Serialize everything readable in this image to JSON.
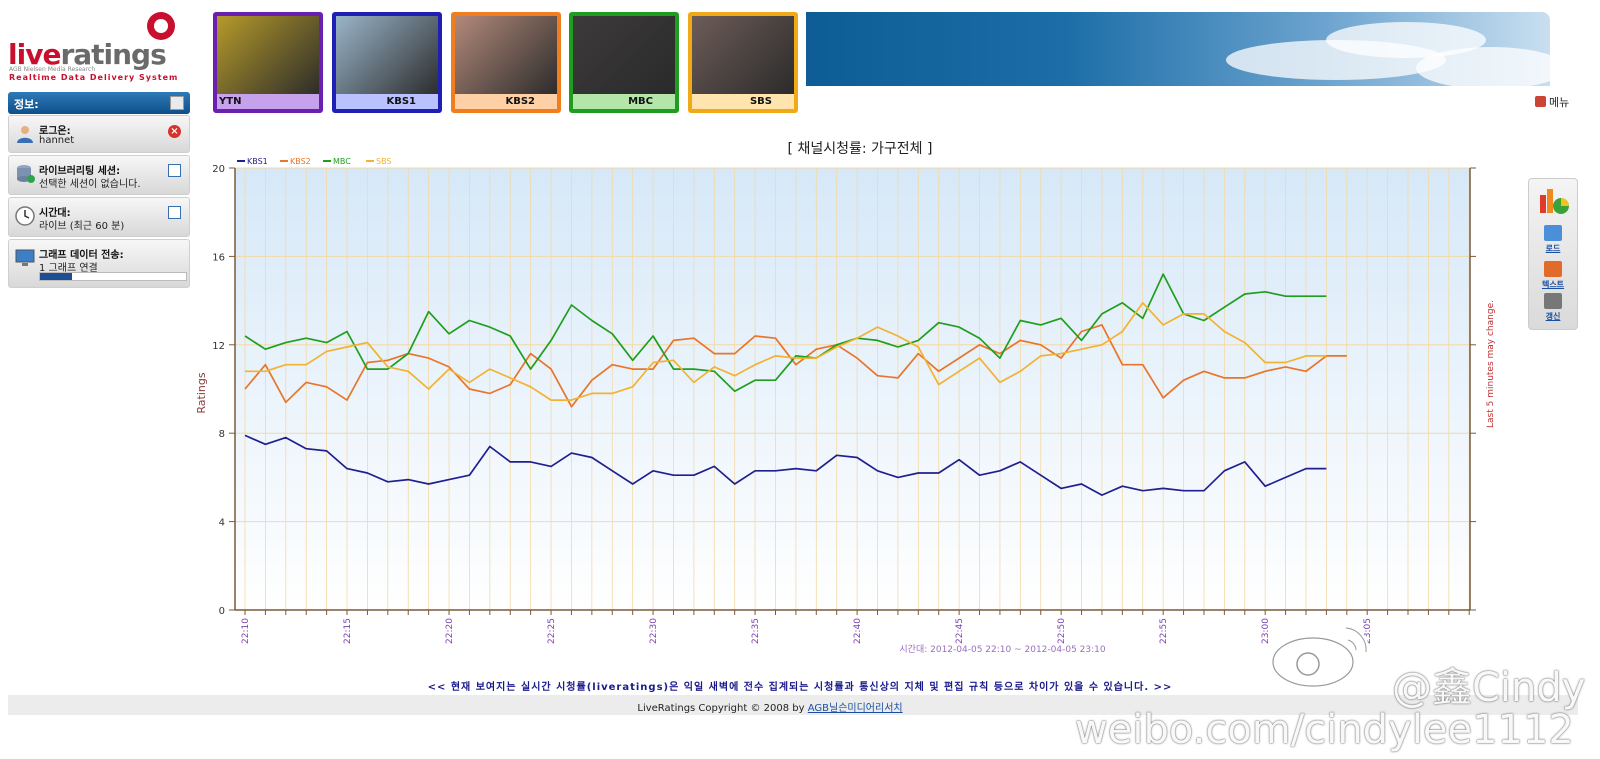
{
  "logo": {
    "live": "live",
    "ratings": "ratings",
    "sub_line1": "AGB Nielsen Media Research",
    "sub_line2": "Realtime Data Delivery System"
  },
  "sidebar": {
    "header": "정보:",
    "login": {
      "title": "로그온:",
      "value": "hannet"
    },
    "library": {
      "title": "라이브러리팅 세션:",
      "value": "선택한 세션이 없습니다."
    },
    "timeslot": {
      "title": "시간대:",
      "value": "라이브 (최근 60 분)"
    },
    "transfer": {
      "title": "그래프 데이터 전송:",
      "value": "1 그래프 연결",
      "progress": 0.22
    }
  },
  "channels": [
    {
      "name": "YTN",
      "color": "#6a1fb0",
      "label_bg": "#c7a2ec",
      "screen": "#b59a2a",
      "align": "left"
    },
    {
      "name": "KBS1",
      "color": "#1f1fb5",
      "label_bg": "#b9c2ff",
      "screen": "#9ab5c9",
      "align": "right"
    },
    {
      "name": "KBS2",
      "color": "#f07d1e",
      "label_bg": "#ffd0a6",
      "screen": "#b2897a",
      "align": "right"
    },
    {
      "name": "MBC",
      "color": "#1e9d1e",
      "label_bg": "#b4e6a9",
      "screen": "#3d3a3c",
      "align": "right"
    },
    {
      "name": "SBS",
      "color": "#f0aa18",
      "label_bg": "#ffe5ad",
      "screen": "#6d5c58",
      "align": "right"
    }
  ],
  "menu_label": "메뉴",
  "tools": [
    {
      "label": "로드",
      "color": "#4a8fd8"
    },
    {
      "label": "텍스트",
      "color": "#e06b2a"
    },
    {
      "label": "갱신",
      "color": "#777777"
    }
  ],
  "chart_data": {
    "type": "line",
    "title": "[ 채널시청률: 가구전체 ]",
    "ylabel": "Ratings",
    "right_label": "Last 5 minutes may change.",
    "xlabel": "시간대: 2012-04-05 22:10 ~ 2012-04-05 23:10",
    "ylim": [
      0,
      20
    ],
    "yticks": [
      0,
      4,
      8,
      12,
      16,
      20
    ],
    "x_start_minute": 0,
    "x_end_minute": 60,
    "xtick_labels": [
      "22:10",
      "22:15",
      "22:20",
      "22:25",
      "22:30",
      "22:35",
      "22:40",
      "22:45",
      "22:50",
      "22:55",
      "23:00",
      "23:05"
    ],
    "legend_position": "top-left",
    "grid": true,
    "series": [
      {
        "name": "KBS1",
        "color": "#1f1f8f",
        "values": [
          7.9,
          7.5,
          7.8,
          7.3,
          7.2,
          6.4,
          6.2,
          5.8,
          5.9,
          5.7,
          5.9,
          6.1,
          7.4,
          6.7,
          6.7,
          6.5,
          7.1,
          6.9,
          6.3,
          5.7,
          6.3,
          6.1,
          6.1,
          6.5,
          5.7,
          6.3,
          6.3,
          6.4,
          6.3,
          7.0,
          6.9,
          6.3,
          6.0,
          6.2,
          6.2,
          6.8,
          6.1,
          6.3,
          6.7,
          6.1,
          5.5,
          5.7,
          5.2,
          5.6,
          5.4,
          5.5,
          5.4,
          5.4,
          6.3,
          6.7,
          5.6,
          6.0,
          6.4,
          6.4
        ]
      },
      {
        "name": "KBS2",
        "color": "#e8752a",
        "values": [
          10.0,
          11.1,
          9.4,
          10.3,
          10.1,
          9.5,
          11.2,
          11.3,
          11.6,
          11.4,
          11.0,
          10.0,
          9.8,
          10.2,
          11.6,
          10.9,
          9.2,
          10.4,
          11.1,
          10.9,
          10.9,
          12.2,
          12.3,
          11.6,
          11.6,
          12.4,
          12.3,
          11.1,
          11.8,
          12.0,
          11.4,
          10.6,
          10.5,
          11.6,
          10.8,
          11.4,
          12.0,
          11.6,
          12.2,
          12.0,
          11.4,
          12.6,
          12.9,
          11.1,
          11.1,
          9.6,
          10.4,
          10.8,
          10.5,
          10.5,
          10.8,
          11.0,
          10.8,
          11.5,
          11.5
        ]
      },
      {
        "name": "MBC",
        "color": "#1f9e1f",
        "values": [
          12.4,
          11.8,
          12.1,
          12.3,
          12.1,
          12.6,
          10.9,
          10.9,
          11.6,
          13.5,
          12.5,
          13.1,
          12.8,
          12.4,
          10.9,
          12.2,
          13.8,
          13.1,
          12.5,
          11.3,
          12.4,
          10.9,
          10.9,
          10.8,
          9.9,
          10.4,
          10.4,
          11.5,
          11.4,
          12.0,
          12.3,
          12.2,
          11.9,
          12.2,
          13.0,
          12.8,
          12.3,
          11.4,
          13.1,
          12.9,
          13.2,
          12.2,
          13.4,
          13.9,
          13.2,
          15.2,
          13.4,
          13.1,
          13.7,
          14.3,
          14.4,
          14.2,
          14.2,
          14.2
        ]
      },
      {
        "name": "SBS",
        "color": "#f2b233",
        "values": [
          10.8,
          10.8,
          11.1,
          11.1,
          11.7,
          11.9,
          12.1,
          11.0,
          10.8,
          10.0,
          10.9,
          10.3,
          10.9,
          10.5,
          10.1,
          9.5,
          9.5,
          9.8,
          9.8,
          10.1,
          11.2,
          11.3,
          10.3,
          11.0,
          10.6,
          11.1,
          11.5,
          11.4,
          11.4,
          11.9,
          12.3,
          12.8,
          12.4,
          11.9,
          10.2,
          10.8,
          11.4,
          10.3,
          10.8,
          11.5,
          11.6,
          11.8,
          12.0,
          12.6,
          13.9,
          12.9,
          13.4,
          13.4,
          12.6,
          12.1,
          11.2,
          11.2,
          11.5,
          11.5
        ]
      }
    ]
  },
  "footer": {
    "notice": "<< 현재 보여지는 실시간 시청률(liveratings)은 익일 새벽에 전수 집계되는 시청률과 통신상의 지체 및 편집 규칙 등으로 차이가 있을 수 있습니다. >>",
    "copyright": "LiveRatings Copyright © 2008 by",
    "company_link": "AGB닐슨미디어리서치"
  },
  "watermark": {
    "handle": "@鑫Cindy",
    "url": "weibo.com/cindylee1112"
  }
}
